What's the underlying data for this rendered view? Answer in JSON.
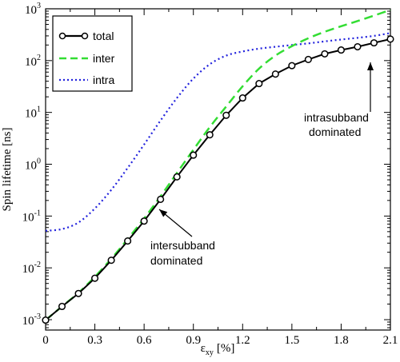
{
  "chart_data": {
    "type": "line",
    "title": "",
    "xlabel": "ε",
    "xlabel_subscript": "xy",
    "xlabel_unit": "[%]",
    "ylabel": "Spin lifetime [ns]",
    "xlim": [
      0,
      2.1
    ],
    "ylim_log10": [
      -3.2,
      3
    ],
    "y_scale": "log",
    "x_ticks": [
      "0",
      "0.3",
      "0.6",
      "0.9",
      "1.2",
      "1.5",
      "1.8",
      "2.1"
    ],
    "x_tick_values": [
      0,
      0.3,
      0.6,
      0.9,
      1.2,
      1.5,
      1.8,
      2.1
    ],
    "y_tick_base": "10",
    "y_tick_exponents": [
      "-3",
      "-2",
      "-1",
      "0",
      "1",
      "2",
      "3"
    ],
    "legend": {
      "placement": "top-left",
      "entries": [
        "total",
        "inter",
        "intra"
      ]
    },
    "series": [
      {
        "name": "total",
        "style": "solid-circles",
        "color": "#000000",
        "x": [
          0,
          0.1,
          0.2,
          0.3,
          0.4,
          0.5,
          0.6,
          0.7,
          0.8,
          0.9,
          1.0,
          1.1,
          1.2,
          1.3,
          1.4,
          1.5,
          1.6,
          1.7,
          1.8,
          1.9,
          2.0,
          2.1
        ],
        "y": [
          0.00098,
          0.0018,
          0.0032,
          0.0063,
          0.014,
          0.033,
          0.08,
          0.21,
          0.57,
          1.5,
          3.7,
          8.8,
          19,
          36,
          55,
          80,
          105,
          135,
          160,
          185,
          220,
          260
        ]
      },
      {
        "name": "inter",
        "style": "dashed",
        "color": "#33dd33",
        "x": [
          0,
          0.1,
          0.2,
          0.3,
          0.4,
          0.5,
          0.6,
          0.7,
          0.8,
          0.9,
          1.0,
          1.1,
          1.2,
          1.3,
          1.4,
          1.5,
          1.6,
          1.7,
          1.8,
          1.9,
          2.0,
          2.1
        ],
        "y": [
          0.00098,
          0.0018,
          0.0033,
          0.0067,
          0.015,
          0.036,
          0.09,
          0.24,
          0.68,
          1.9,
          5.2,
          13,
          32,
          70,
          125,
          190,
          270,
          360,
          460,
          580,
          740,
          950
        ]
      },
      {
        "name": "intra",
        "style": "dotted",
        "color": "#2222dd",
        "x": [
          0,
          0.1,
          0.2,
          0.3,
          0.4,
          0.5,
          0.6,
          0.7,
          0.8,
          0.9,
          1.0,
          1.1,
          1.2,
          1.3,
          1.4,
          1.5,
          1.6,
          1.7,
          1.8,
          1.9,
          2.0,
          2.1
        ],
        "y": [
          0.052,
          0.056,
          0.075,
          0.14,
          0.32,
          0.85,
          2.4,
          7.0,
          19,
          45,
          85,
          125,
          150,
          170,
          185,
          200,
          215,
          235,
          255,
          275,
          300,
          340
        ]
      }
    ],
    "annotations": [
      {
        "lines": [
          "intersubband",
          "dominated"
        ],
        "arrow_target": [
          0.69,
          0.12
        ]
      },
      {
        "lines": [
          "intrasubband",
          "dominated"
        ],
        "arrow_target": [
          2.0,
          220
        ]
      }
    ]
  }
}
